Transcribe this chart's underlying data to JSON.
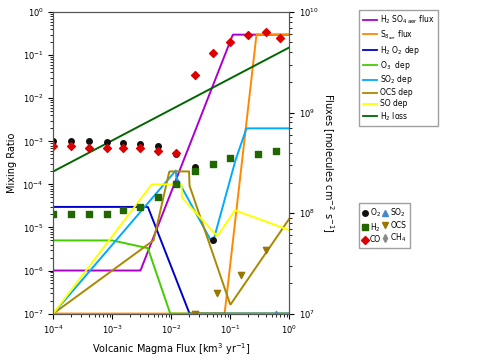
{
  "xlabel": "Volcanic Magma Flux [km$^3$ yr$^{-1}$]",
  "ylabel_left": "Mixing Ratio",
  "ylabel_right": "Fluxes [molecules cm$^{-2}$ s$^{-1}$]",
  "bg_color": "#ffffff",
  "line_colors": {
    "H2SO4": "#aa00cc",
    "S8": "#ff8800",
    "H2O2": "#0000cc",
    "O3": "#44cc00",
    "SO2": "#00aaff",
    "OCS": "#aa8800",
    "SO": "#ffff00",
    "H2loss": "#006600"
  },
  "scatter_colors": {
    "O2": "#111111",
    "H2": "#226600",
    "CO": "#dd0000",
    "SO2": "#4488cc",
    "OCS": "#997700",
    "CH4": "#888888"
  }
}
